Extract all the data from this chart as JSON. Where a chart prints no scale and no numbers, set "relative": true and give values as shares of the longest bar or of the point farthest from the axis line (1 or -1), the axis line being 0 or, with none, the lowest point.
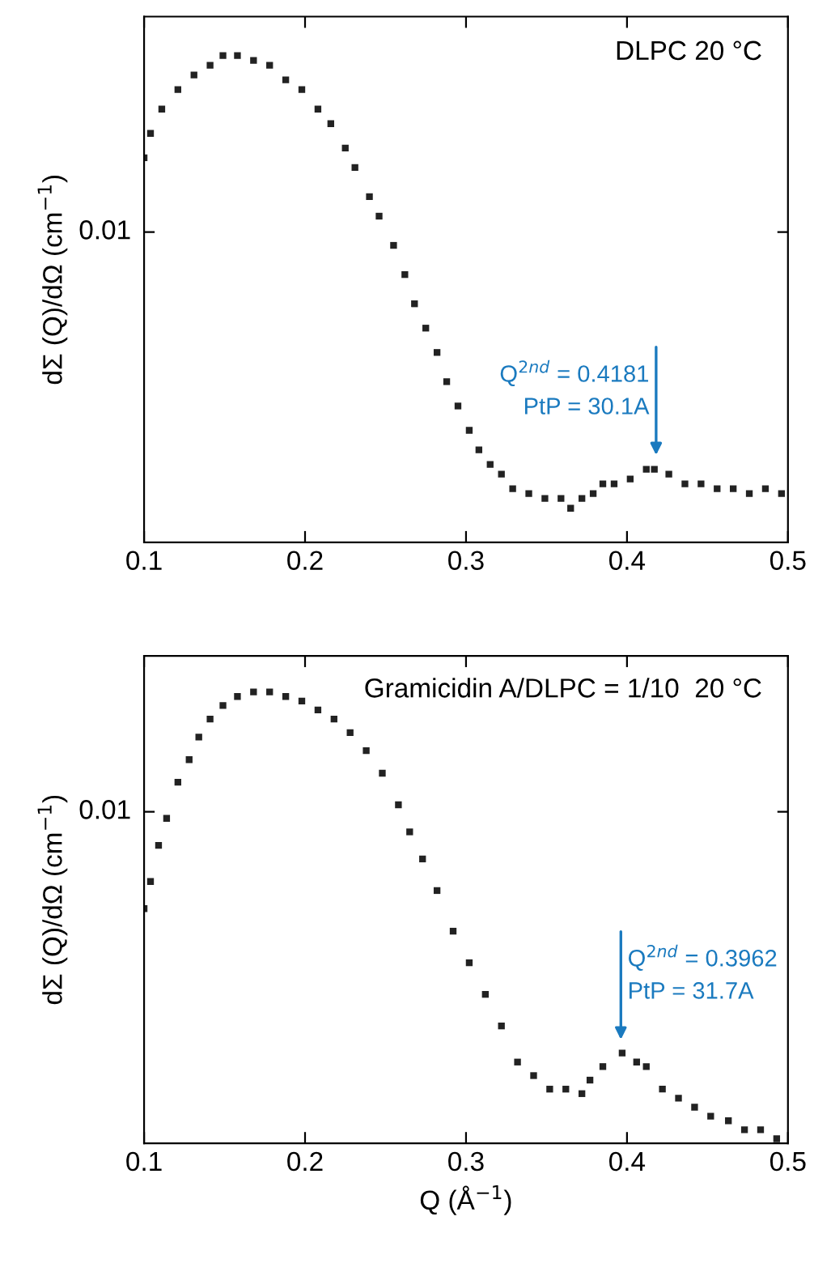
{
  "chart_data": [
    {
      "type": "scatter",
      "title": "DLPC 20 °C",
      "ylabel": "dΣ (Q)/dΩ (cm$^{−1}$)",
      "relative": true,
      "marker": "square",
      "xlim": [
        0.1,
        0.5
      ],
      "xticks": [
        0.1,
        0.2,
        0.3,
        0.4,
        0.5
      ],
      "tick_labels": "x",
      "grid": false,
      "legend": false,
      "x": [
        0.1,
        0.104,
        0.111,
        0.121,
        0.131,
        0.141,
        0.149,
        0.158,
        0.168,
        0.178,
        0.188,
        0.198,
        0.208,
        0.216,
        0.225,
        0.231,
        0.24,
        0.246,
        0.255,
        0.262,
        0.268,
        0.275,
        0.282,
        0.288,
        0.295,
        0.302,
        0.308,
        0.315,
        0.322,
        0.329,
        0.339,
        0.349,
        0.359,
        0.365,
        0.372,
        0.379,
        0.385,
        0.392,
        0.402,
        0.412,
        0.417,
        0.426,
        0.436,
        0.446,
        0.456,
        0.466,
        0.476,
        0.486,
        0.496
      ],
      "series": [
        {
          "color": "#222222",
          "values": [
            0.79,
            0.84,
            0.89,
            0.93,
            0.96,
            0.98,
            1.0,
            1.0,
            0.99,
            0.98,
            0.95,
            0.93,
            0.89,
            0.86,
            0.81,
            0.77,
            0.71,
            0.67,
            0.61,
            0.55,
            0.49,
            0.44,
            0.39,
            0.33,
            0.28,
            0.23,
            0.19,
            0.16,
            0.14,
            0.11,
            0.1,
            0.09,
            0.09,
            0.07,
            0.09,
            0.1,
            0.12,
            0.12,
            0.13,
            0.15,
            0.15,
            0.14,
            0.12,
            0.12,
            0.11,
            0.11,
            0.1,
            0.11,
            0.1
          ]
        }
      ],
      "annotations": [
        "0.01",
        {
          "text": "Q$^{2nd}$ = 0.4181\nPtP = 30.1A",
          "x": 0.4181,
          "y": 0.17
        }
      ]
    },
    {
      "type": "scatter",
      "title": "Gramicidin A/DLPC = 1/10  20 °C",
      "ylabel": "dΣ (Q)/dΩ (cm$^{−1}$)",
      "xlabel": "Q (Å$^{−1}$)",
      "relative": true,
      "marker": "square",
      "xlim": [
        0.1,
        0.5
      ],
      "xticks": [
        0.1,
        0.2,
        0.3,
        0.4,
        0.5
      ],
      "tick_labels": "x",
      "grid": false,
      "legend": false,
      "x": [
        0.1,
        0.104,
        0.109,
        0.114,
        0.121,
        0.128,
        0.134,
        0.141,
        0.149,
        0.158,
        0.168,
        0.178,
        0.188,
        0.198,
        0.208,
        0.218,
        0.228,
        0.238,
        0.248,
        0.258,
        0.265,
        0.273,
        0.282,
        0.292,
        0.302,
        0.312,
        0.322,
        0.332,
        0.342,
        0.352,
        0.362,
        0.372,
        0.377,
        0.385,
        0.397,
        0.406,
        0.412,
        0.422,
        0.432,
        0.442,
        0.452,
        0.463,
        0.473,
        0.483,
        0.493
      ],
      "series": [
        {
          "color": "#222222",
          "values": [
            0.52,
            0.58,
            0.66,
            0.72,
            0.8,
            0.85,
            0.9,
            0.94,
            0.97,
            0.99,
            1.0,
            1.0,
            0.99,
            0.98,
            0.96,
            0.94,
            0.91,
            0.87,
            0.82,
            0.75,
            0.69,
            0.63,
            0.56,
            0.47,
            0.4,
            0.33,
            0.26,
            0.18,
            0.15,
            0.12,
            0.12,
            0.11,
            0.14,
            0.17,
            0.2,
            0.18,
            0.17,
            0.12,
            0.1,
            0.08,
            0.06,
            0.05,
            0.03,
            0.03,
            0.01
          ]
        }
      ],
      "annotations": [
        "0.01",
        {
          "text": "Q$^{2nd}$ = 0.3962\nPtP = 31.7A",
          "x": 0.3962,
          "y": 0.22
        }
      ]
    }
  ]
}
